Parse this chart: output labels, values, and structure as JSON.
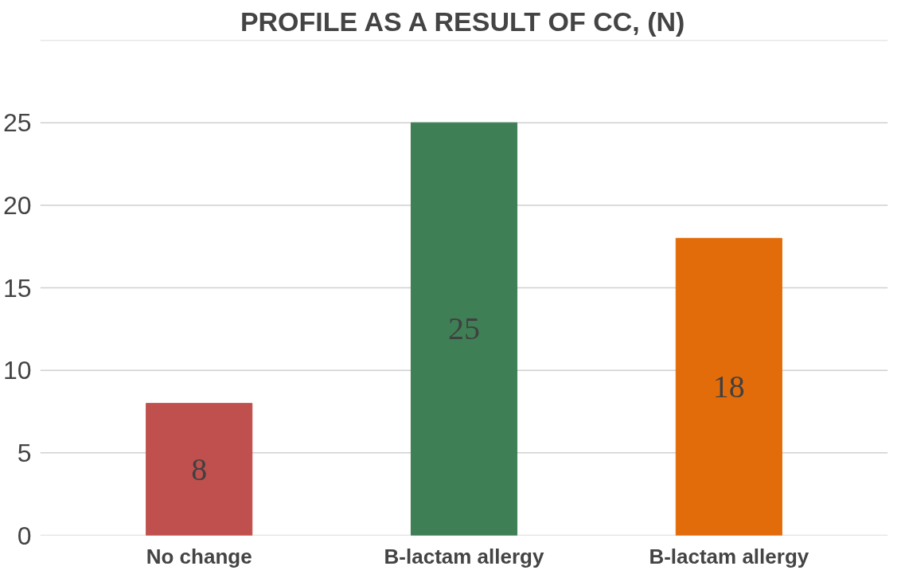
{
  "chart_data": {
    "type": "bar",
    "title": "PROFILE AS A RESULT OF CC, (N)",
    "categories": [
      "No change",
      "B-lactam allergy",
      "B-lactam allergy"
    ],
    "values": [
      8,
      25,
      18
    ],
    "colors": [
      "#c0504d",
      "#3f7f55",
      "#e36c0a"
    ],
    "ylim": [
      0,
      30
    ],
    "yticks": [
      0,
      5,
      10,
      15,
      20,
      25,
      {
        "value": 30,
        "label": null
      }
    ],
    "grid": "y",
    "data_labels": true
  }
}
